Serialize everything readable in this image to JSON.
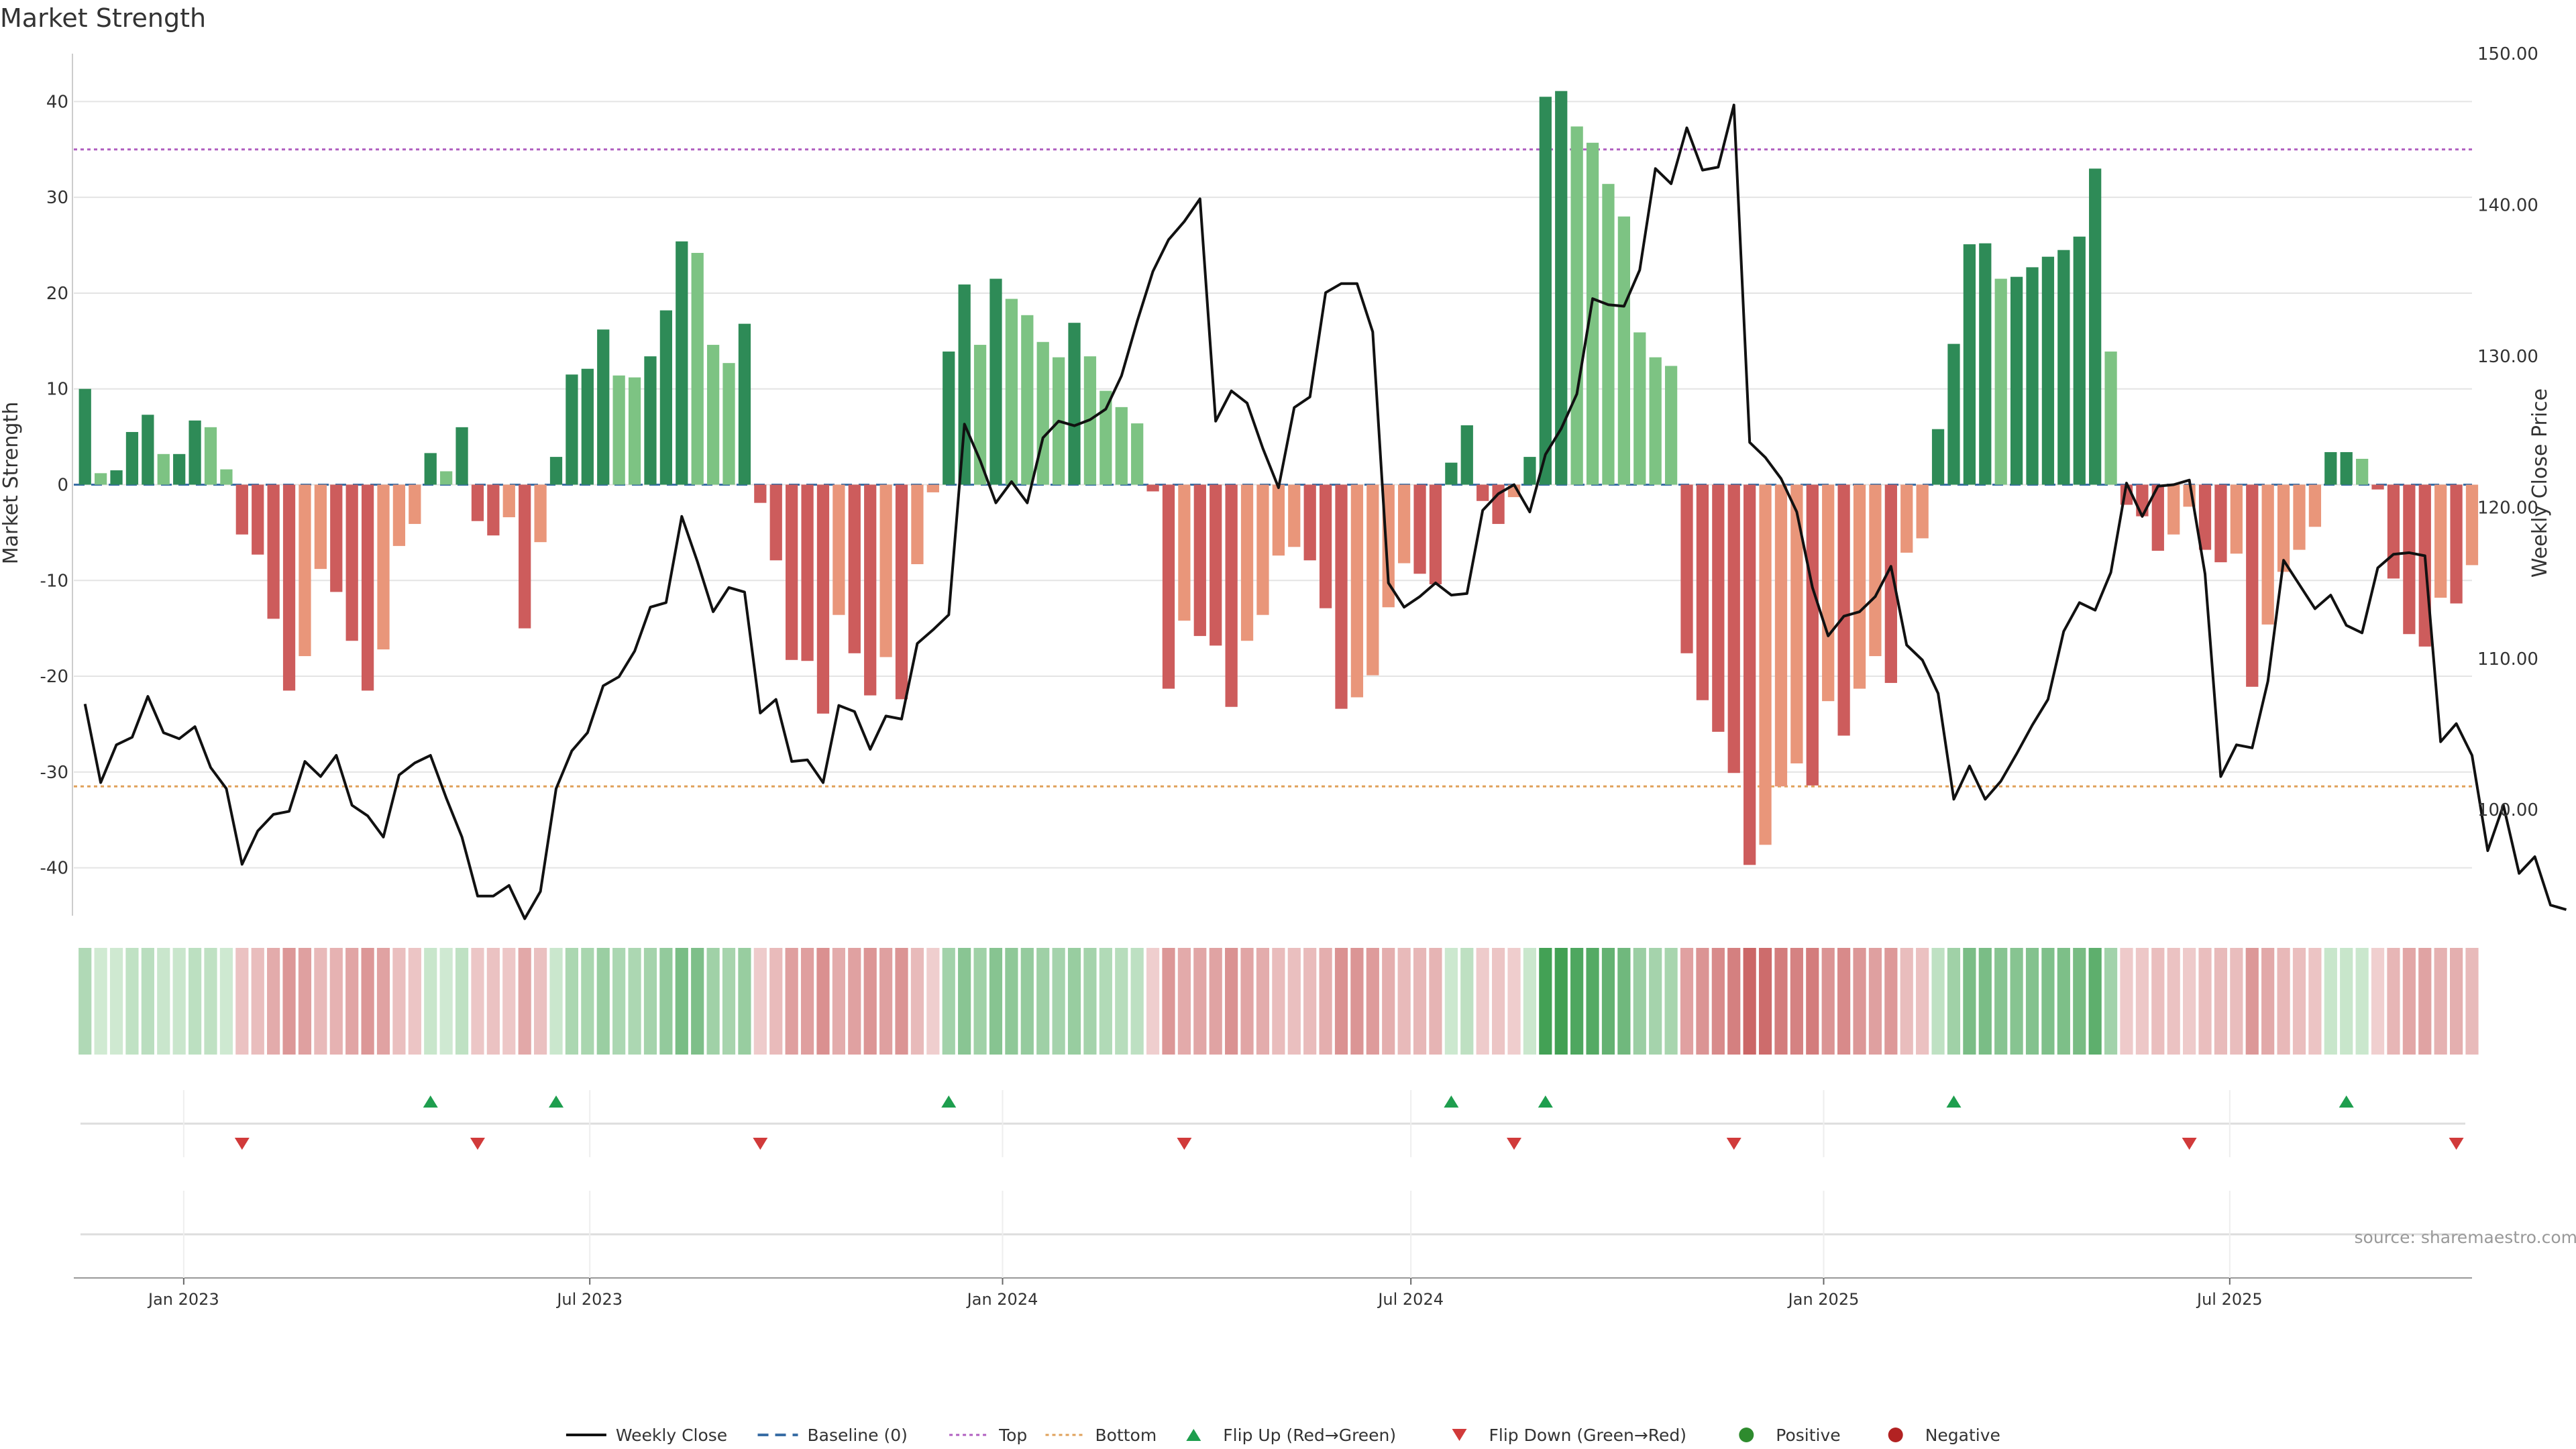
{
  "chart_data": {
    "type": "bar",
    "title": "Market Strength",
    "ylabel_left": "Market Strength",
    "ylabel_right": "Weekly Close Price",
    "ylim_left": [
      -45,
      45
    ],
    "ylim_right": [
      93,
      150
    ],
    "yticks_left": [
      -40,
      -30,
      -20,
      -10,
      0,
      10,
      20,
      30,
      40
    ],
    "yticks_right": [
      "100.00",
      "110.00",
      "120.00",
      "130.00",
      "140.00",
      "150.00"
    ],
    "yticks_right_values": [
      100,
      110,
      120,
      130,
      140,
      150
    ],
    "xlim": [
      "2022-11-13",
      "2025-10-17"
    ],
    "xticks": [
      {
        "date": "2023-01-01",
        "label": "Jan 2023"
      },
      {
        "date": "2023-07-01",
        "label": "Jul 2023"
      },
      {
        "date": "2024-01-01",
        "label": "Jan 2024"
      },
      {
        "date": "2024-07-01",
        "label": "Jul 2024"
      },
      {
        "date": "2025-01-01",
        "label": "Jan 2025"
      },
      {
        "date": "2025-07-01",
        "label": "Jul 2025"
      }
    ],
    "first_week": "2022-11-18",
    "strength": [
      10,
      1.2,
      1.5,
      5.5,
      7.3,
      3.2,
      3.2,
      6.7,
      6,
      1.6,
      -5.2,
      -7.3,
      -14,
      -21.5,
      -17.9,
      -8.8,
      -11.2,
      -16.3,
      -21.5,
      -17.2,
      -6.4,
      -4.1,
      3.3,
      1.4,
      6,
      -3.8,
      -5.3,
      -3.4,
      -15,
      -6,
      2.9,
      11.5,
      12.1,
      16.2,
      11.4,
      11.2,
      13.4,
      18.2,
      25.4,
      24.2,
      14.6,
      12.7,
      16.8,
      -1.9,
      -7.9,
      -18.3,
      -18.4,
      -23.9,
      -13.6,
      -17.6,
      -22,
      -18,
      -22.4,
      -8.3,
      -0.8,
      13.9,
      20.9,
      14.6,
      21.5,
      19.4,
      17.7,
      14.9,
      13.3,
      16.9,
      13.4,
      9.8,
      8.1,
      6.4,
      -0.7,
      -21.3,
      -14.2,
      -15.8,
      -16.8,
      -23.2,
      -16.3,
      -13.6,
      -7.4,
      -6.5,
      -7.9,
      -12.9,
      -23.4,
      -22.2,
      -19.9,
      -12.8,
      -8.2,
      -9.3,
      -10.4,
      2.3,
      6.2,
      -1.7,
      -4.1,
      -1.3,
      2.9,
      40.5,
      41.1,
      37.4,
      35.7,
      31.4,
      28,
      15.9,
      13.3,
      12.4,
      -17.6,
      -22.5,
      -25.8,
      -30.1,
      -39.7,
      -37.6,
      -31.5,
      -29.1,
      -31.4,
      -22.6,
      -26.2,
      -21.3,
      -17.9,
      -20.7,
      -7.1,
      -5.6,
      5.8,
      14.7,
      25.1,
      25.2,
      21.5,
      21.7,
      22.7,
      23.8,
      24.5,
      25.9,
      33,
      13.9,
      -2.1,
      -3.3,
      -6.9,
      -5.2,
      -2.3,
      -6.8,
      -8.1,
      -7.2,
      -21.1,
      -14.6,
      -9.1,
      -6.8,
      -4.4,
      3.4,
      3.4,
      2.7,
      -0.5,
      -9.8,
      -15.6,
      -16.9,
      -11.8,
      -12.4,
      -8.4
    ],
    "close": [
      107,
      101.8,
      104.3,
      104.8,
      107.5,
      105.1,
      104.7,
      105.5,
      102.8,
      101.4,
      96.4,
      98.6,
      99.7,
      99.9,
      103.2,
      102.2,
      103.6,
      100.3,
      99.6,
      98.2,
      102.3,
      103.1,
      103.6,
      100.8,
      98.2,
      94.3,
      94.3,
      95,
      92.8,
      94.6,
      101.4,
      103.9,
      105.1,
      108.2,
      108.8,
      110.5,
      113.4,
      113.7,
      119.4,
      116.4,
      113.1,
      114.7,
      114.4,
      106.4,
      107.3,
      103.2,
      103.3,
      101.8,
      106.9,
      106.5,
      104,
      106.2,
      106,
      111,
      111.9,
      112.9,
      125.5,
      123.1,
      120.3,
      121.7,
      120.3,
      124.6,
      125.7,
      125.4,
      125.8,
      126.5,
      128.7,
      132.3,
      135.6,
      137.7,
      138.9,
      140.4,
      125.7,
      127.7,
      126.9,
      123.9,
      121.3,
      126.6,
      127.3,
      134.2,
      134.8,
      134.8,
      131.6,
      115,
      113.4,
      114.1,
      115,
      114.2,
      114.3,
      119.8,
      120.9,
      121.5,
      119.7,
      123.5,
      125.2,
      127.5,
      133.8,
      133.4,
      133.3,
      135.7,
      142.4,
      141.4,
      145.1,
      142.3,
      142.5,
      146.6,
      124.3,
      123.3,
      121.9,
      119.7,
      114.7,
      111.5,
      112.8,
      113.1,
      114.1,
      116.1,
      110.9,
      109.9,
      107.7,
      100.7,
      102.9,
      100.7,
      101.9,
      103.7,
      105.6,
      107.3,
      111.8,
      113.7,
      113.2,
      115.7,
      121.6,
      119.4,
      121.4,
      121.5,
      121.8,
      115.6,
      102.2,
      104.3,
      104.1,
      108.5,
      116.5,
      114.9,
      113.3,
      114.2,
      112.2,
      111.7,
      116,
      116.9,
      117,
      116.8,
      104.5,
      105.7,
      103.6,
      97.3,
      100.3,
      95.8,
      96.9,
      93.7,
      93.4
    ],
    "reference_lines": [
      {
        "name": "Baseline (0)",
        "value": 0,
        "color": "#3a6ea5",
        "style": "dashed"
      },
      {
        "name": "Top",
        "value": 35,
        "color": "#b05fc0",
        "style": "dotted"
      },
      {
        "name": "Bottom",
        "value": -31.5,
        "color": "#e0a15a",
        "style": "dotted"
      }
    ],
    "flip_up_weeks": [
      22,
      30,
      55,
      87,
      93,
      119,
      144
    ],
    "flip_down_weeks": [
      10,
      25,
      43,
      70,
      91,
      105,
      134,
      151
    ],
    "legend": [
      {
        "label": "Weekly Close",
        "kind": "line",
        "color": "#111111"
      },
      {
        "label": "Baseline (0)",
        "kind": "dash",
        "color": "#3a6ea5"
      },
      {
        "label": "Top",
        "kind": "dot",
        "color": "#b05fc0"
      },
      {
        "label": "Bottom",
        "kind": "dot",
        "color": "#e0a15a"
      },
      {
        "label": "Flip Up (Red→Green)",
        "kind": "tri-up",
        "color": "#1e9e4e"
      },
      {
        "label": "Flip Down (Green→Red)",
        "kind": "tri-down",
        "color": "#d13a3a"
      },
      {
        "label": "Positive",
        "kind": "circle",
        "color": "#2e8b2e"
      },
      {
        "label": "Negative",
        "kind": "circle",
        "color": "#b22222"
      }
    ],
    "colors": {
      "green_dark": "#2e8b57",
      "green_light": "#7dc383",
      "red_dark": "#cd5c5c",
      "red_light": "#e9967a",
      "close_line": "#111111"
    },
    "legend_placement": "bottom-center",
    "grid": true
  },
  "source": "source: sharemaestro.com"
}
